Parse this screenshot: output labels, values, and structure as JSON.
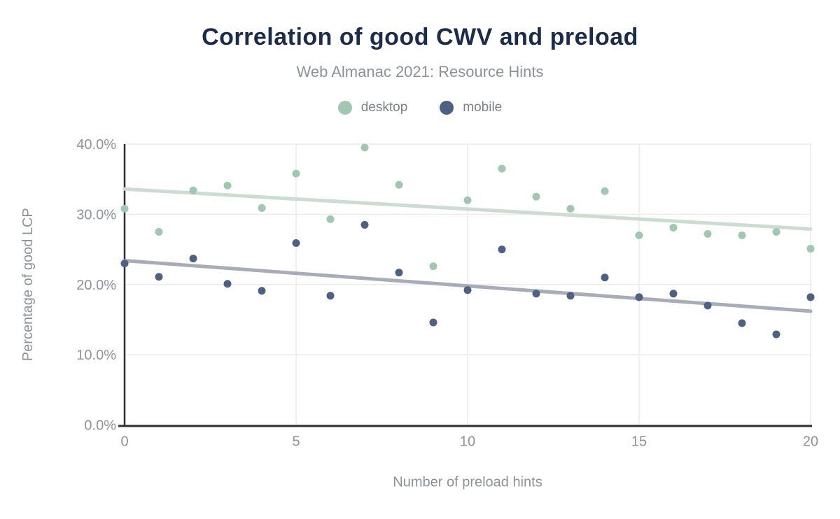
{
  "chart_data": {
    "type": "scatter",
    "title": "Correlation of good CWV and preload",
    "subtitle": "Web Almanac 2021: Resource Hints",
    "xlabel": "Number of preload hints",
    "ylabel": "Percentage of good LCP",
    "xlim": [
      0,
      20
    ],
    "ylim": [
      0,
      40
    ],
    "grid": true,
    "legend_position": "top",
    "x_ticks": [
      {
        "value": 0,
        "label": "0"
      },
      {
        "value": 5,
        "label": "5"
      },
      {
        "value": 10,
        "label": "10"
      },
      {
        "value": 15,
        "label": "15"
      },
      {
        "value": 20,
        "label": "20"
      }
    ],
    "y_ticks": [
      {
        "value": 0,
        "label": "0.0%"
      },
      {
        "value": 10,
        "label": "10.0%"
      },
      {
        "value": 20,
        "label": "20.0%"
      },
      {
        "value": 30,
        "label": "30.0%"
      },
      {
        "value": 40,
        "label": "40.0%"
      }
    ],
    "x": [
      0,
      1,
      2,
      3,
      4,
      5,
      6,
      7,
      8,
      9,
      10,
      11,
      12,
      13,
      14,
      15,
      16,
      17,
      18,
      19,
      20
    ],
    "series": [
      {
        "name": "desktop",
        "color": "#a2c7b1",
        "values": [
          30.8,
          27.5,
          33.4,
          34.1,
          30.9,
          35.8,
          29.3,
          39.5,
          34.2,
          22.6,
          32.0,
          36.5,
          32.5,
          30.8,
          33.3,
          27.0,
          28.1,
          27.2,
          27.0,
          27.5,
          25.1
        ],
        "trend": {
          "start": 33.6,
          "end": 27.9,
          "color": "#ccdcd2"
        }
      },
      {
        "name": "mobile",
        "color": "#4e6183",
        "values": [
          23.0,
          21.1,
          23.7,
          20.1,
          19.1,
          25.9,
          18.4,
          28.5,
          21.7,
          14.6,
          19.2,
          25.0,
          18.7,
          18.4,
          21.0,
          18.2,
          18.7,
          17.0,
          14.5,
          12.9,
          18.2
        ],
        "trend": {
          "start": 23.4,
          "end": 16.2,
          "color": "#a6acb8"
        }
      }
    ],
    "colors": {
      "grid": "#ececec",
      "axis": "#2e2e2e",
      "tick_text": "#8d929a",
      "axis_title": "#8d929a",
      "title_text": "#1c2b4a",
      "subtitle_text": "#8d9199",
      "legend_text": "#7c8087"
    }
  }
}
